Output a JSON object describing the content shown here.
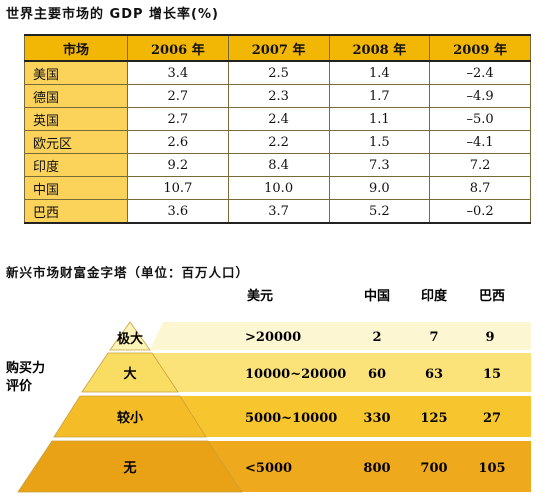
{
  "gdp": {
    "title": "世界主要市场的 GDP 增长率(%)",
    "columns": [
      "市场",
      "2006 年",
      "2007 年",
      "2008 年",
      "2009 年"
    ],
    "rows": [
      {
        "market": "美国",
        "values": [
          "3.4",
          "2.5",
          "1.4",
          "–2.4"
        ]
      },
      {
        "market": "德国",
        "values": [
          "2.7",
          "2.3",
          "1.7",
          "–4.9"
        ]
      },
      {
        "market": "英国",
        "values": [
          "2.7",
          "2.4",
          "1.1",
          "–5.0"
        ]
      },
      {
        "market": "欧元区",
        "values": [
          "2.6",
          "2.2",
          "1.5",
          "–4.1"
        ]
      },
      {
        "market": "印度",
        "values": [
          "9.2",
          "8.4",
          "7.3",
          "7.2"
        ]
      },
      {
        "market": "中国",
        "values": [
          "10.7",
          "10.0",
          "9.0",
          "8.7"
        ]
      },
      {
        "market": "巴西",
        "values": [
          "3.6",
          "3.7",
          "5.2",
          "–0.2"
        ]
      }
    ]
  },
  "pyramid": {
    "title": "新兴市场财富金字塔（单位：百万人口）",
    "axis_label_line1": "购买力",
    "axis_label_line2": "评价",
    "headers": {
      "usd": "美元",
      "china": "中国",
      "india": "印度",
      "brazil": "巴西"
    },
    "tiers": [
      {
        "level": "极大",
        "usd": ">20000",
        "china": "2",
        "india": "7",
        "brazil": "9",
        "band_color": "#fdf6d2"
      },
      {
        "level": "大",
        "usd": "10000~20000",
        "china": "60",
        "india": "63",
        "brazil": "15",
        "band_color": "#fbe37a"
      },
      {
        "level": "较小",
        "usd": "5000~10000",
        "china": "330",
        "india": "125",
        "brazil": "27",
        "band_color": "#f7c52e"
      },
      {
        "level": "无",
        "usd": "<5000",
        "china": "800",
        "india": "700",
        "brazil": "105",
        "band_color": "#eea91c"
      }
    ]
  }
}
